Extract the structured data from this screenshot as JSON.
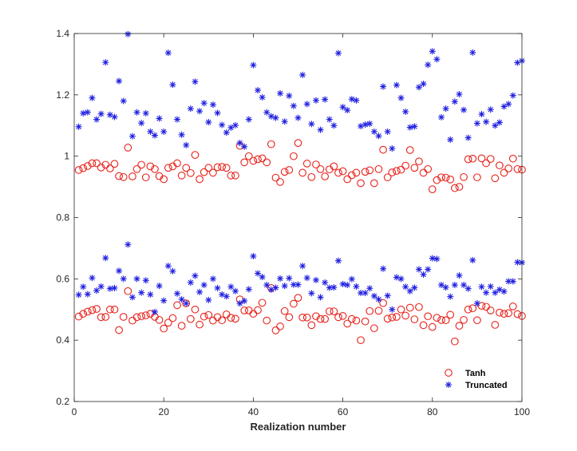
{
  "chart_data": {
    "type": "scatter",
    "title": "",
    "xlabel": "Realization number",
    "ylabel": "",
    "xlim": [
      0,
      100
    ],
    "ylim": [
      0.2,
      1.4
    ],
    "xticks": [
      0,
      20,
      40,
      60,
      80,
      100
    ],
    "yticks": [
      0.2,
      0.4,
      0.6,
      0.8,
      1.0,
      1.2,
      1.4
    ],
    "xtick_labels": [
      "0",
      "20",
      "40",
      "60",
      "80",
      "100"
    ],
    "ytick_labels": [
      "0.2",
      "0.4",
      "0.6",
      "0.8",
      "1",
      "1.2",
      "1.4"
    ],
    "grid": false,
    "box": true,
    "legend_position": "bottom-right",
    "series": [
      {
        "name": "Tanh",
        "marker": "circle",
        "color": "#e8211a",
        "groups": [
          [
            0.955,
            0.961,
            0.968,
            0.977,
            0.977,
            0.963,
            0.972,
            0.96,
            0.975,
            0.935,
            0.932,
            1.028,
            0.934,
            0.958,
            0.972,
            0.931,
            0.967,
            0.958,
            0.935,
            0.925,
            0.962,
            0.967,
            0.977,
            0.937,
            0.962,
            0.945,
            1.004,
            0.925,
            0.948,
            0.962,
            0.946,
            0.964,
            0.965,
            0.962,
            0.937,
            0.937,
            1.034,
            0.98,
            1.0,
            0.985,
            0.99,
            0.993,
            0.98,
            1.039,
            0.93,
            0.916,
            0.949,
            0.955,
            1.0,
            1.043,
            0.946,
            0.976,
            0.932,
            0.973,
            0.958,
            0.934,
            0.957,
            0.967,
            0.946,
            0.951,
            0.925,
            0.938,
            0.946,
            0.912,
            0.949,
            0.954,
            0.912,
            0.958,
            1.021,
            0.931,
            0.947,
            0.952,
            0.956,
            0.969,
            1.02,
            0.962,
            0.983,
            0.946,
            0.958,
            0.892,
            0.922,
            0.931,
            0.93,
            0.924,
            0.896,
            0.9,
            0.932,
            0.99,
            0.992,
            0.931,
            0.993,
            0.977,
            0.991,
            0.928,
            0.97,
            0.946,
            0.96,
            0.992,
            0.958,
            0.956
          ],
          [
            0.477,
            0.486,
            0.493,
            0.498,
            0.502,
            0.475,
            0.476,
            0.5,
            0.5,
            0.433,
            0.476,
            0.56,
            0.464,
            0.475,
            0.478,
            0.481,
            0.486,
            0.476,
            0.466,
            0.438,
            0.457,
            0.472,
            0.514,
            0.447,
            0.52,
            0.469,
            0.5,
            0.451,
            0.477,
            0.482,
            0.464,
            0.475,
            0.465,
            0.484,
            0.473,
            0.47,
            0.533,
            0.497,
            0.497,
            0.486,
            0.498,
            0.522,
            0.464,
            0.57,
            0.432,
            0.445,
            0.495,
            0.475,
            0.519,
            0.538,
            0.474,
            0.474,
            0.449,
            0.478,
            0.469,
            0.469,
            0.494,
            0.494,
            0.475,
            0.479,
            0.454,
            0.469,
            0.464,
            0.4,
            0.461,
            0.495,
            0.439,
            0.496,
            0.521,
            0.47,
            0.474,
            0.476,
            0.5,
            0.48,
            0.506,
            0.468,
            0.508,
            0.449,
            0.478,
            0.443,
            0.473,
            0.466,
            0.465,
            0.483,
            0.396,
            0.447,
            0.466,
            0.5,
            0.504,
            0.465,
            0.512,
            0.509,
            0.497,
            0.45,
            0.49,
            0.486,
            0.488,
            0.51,
            0.485,
            0.479
          ]
        ]
      },
      {
        "name": "Truncated",
        "marker": "asterisk",
        "color": "#1f1fe0",
        "groups": [
          [
            1.096,
            1.14,
            1.143,
            1.19,
            1.12,
            1.138,
            1.306,
            1.135,
            1.128,
            1.245,
            1.18,
            1.398,
            1.065,
            1.143,
            1.108,
            1.14,
            1.08,
            1.068,
            1.123,
            1.08,
            1.337,
            1.233,
            1.12,
            1.07,
            1.036,
            1.155,
            1.243,
            1.147,
            1.173,
            1.111,
            1.168,
            1.141,
            1.102,
            1.077,
            1.093,
            1.101,
            1.043,
            1.031,
            1.12,
            1.297,
            1.215,
            1.192,
            1.143,
            1.13,
            1.125,
            1.205,
            1.113,
            1.197,
            1.164,
            1.125,
            1.265,
            1.17,
            1.105,
            1.182,
            1.086,
            1.185,
            1.12,
            1.1,
            1.336,
            1.16,
            1.15,
            1.186,
            1.182,
            1.098,
            1.103,
            1.106,
            1.08,
            1.066,
            1.227,
            1.08,
            1.025,
            1.232,
            1.19,
            1.145,
            1.094,
            1.097,
            1.225,
            1.236,
            1.298,
            1.342,
            1.316,
            1.127,
            1.155,
            1.054,
            1.178,
            1.202,
            1.151,
            1.06,
            1.338,
            1.107,
            1.137,
            1.112,
            1.152,
            1.1,
            1.11,
            1.162,
            1.17,
            1.198,
            1.305,
            1.311
          ],
          [
            0.548,
            0.574,
            0.55,
            0.603,
            0.562,
            0.575,
            0.668,
            0.568,
            0.57,
            0.626,
            0.6,
            0.712,
            0.54,
            0.6,
            0.555,
            0.595,
            0.549,
            0.492,
            0.577,
            0.529,
            0.642,
            0.625,
            0.552,
            0.533,
            0.52,
            0.588,
            0.61,
            0.557,
            0.58,
            0.531,
            0.6,
            0.57,
            0.549,
            0.543,
            0.574,
            0.56,
            0.52,
            0.528,
            0.566,
            0.674,
            0.618,
            0.606,
            0.58,
            0.565,
            0.571,
            0.601,
            0.577,
            0.602,
            0.581,
            0.581,
            0.642,
            0.603,
            0.553,
            0.596,
            0.54,
            0.588,
            0.571,
            0.572,
            0.659,
            0.583,
            0.58,
            0.599,
            0.575,
            0.554,
            0.554,
            0.569,
            0.544,
            0.533,
            0.633,
            0.545,
            0.5,
            0.605,
            0.6,
            0.574,
            0.56,
            0.571,
            0.631,
            0.614,
            0.631,
            0.667,
            0.665,
            0.58,
            0.572,
            0.542,
            0.58,
            0.611,
            0.58,
            0.568,
            0.661,
            0.52,
            0.574,
            0.555,
            0.575,
            0.555,
            0.565,
            0.559,
            0.592,
            0.592,
            0.654,
            0.653
          ]
        ]
      }
    ]
  }
}
